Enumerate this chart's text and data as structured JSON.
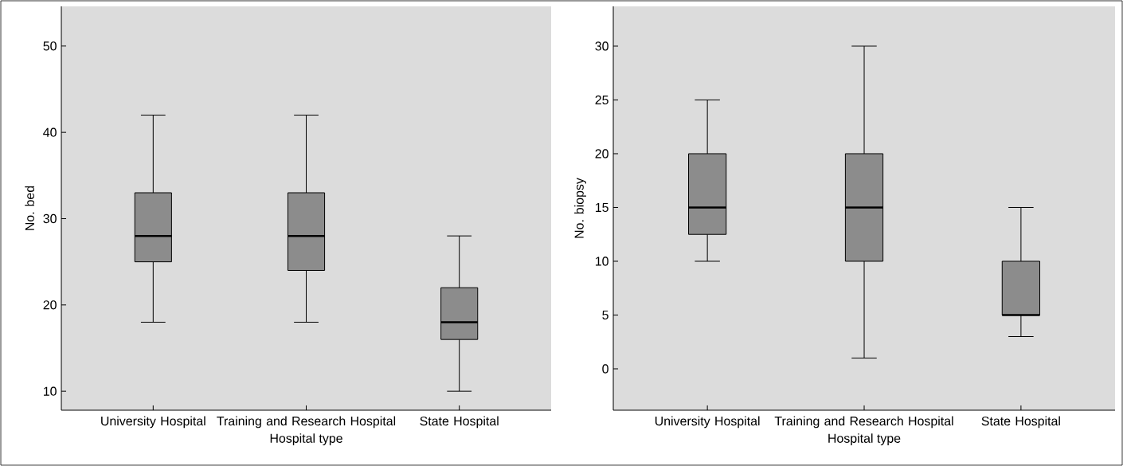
{
  "chart_data": [
    {
      "type": "box",
      "categories": [
        "University Hospital",
        "Training and Research Hospital",
        "State Hospital"
      ],
      "xlabel": "Hospital type",
      "ylabel": "No. bed",
      "color": "#8c8c8c",
      "ylim": [
        7.8,
        54.6
      ],
      "yticks": [
        10,
        20,
        30,
        40,
        50
      ],
      "boxes": [
        {
          "low": 18,
          "q1": 25,
          "median": 28,
          "q3": 33,
          "high": 42
        },
        {
          "low": 18,
          "q1": 24,
          "median": 28,
          "q3": 33,
          "high": 42
        },
        {
          "low": 10,
          "q1": 16,
          "median": 18,
          "q3": 22,
          "high": 28
        }
      ]
    },
    {
      "type": "box",
      "categories": [
        "University Hospital",
        "Training and Research Hospital",
        "State Hospital"
      ],
      "xlabel": "Hospital type",
      "ylabel": "No. biopsy",
      "color": "#8c8c8c",
      "ylim": [
        -3.85,
        33.7
      ],
      "yticks": [
        0,
        5,
        10,
        15,
        20,
        25,
        30
      ],
      "boxes": [
        {
          "low": 10,
          "q1": 12.5,
          "median": 15,
          "q3": 20,
          "high": 25
        },
        {
          "low": 1,
          "q1": 10,
          "median": 15,
          "q3": 20,
          "high": 30
        },
        {
          "low": 3,
          "q1": 5,
          "median": 5,
          "q3": 10,
          "high": 15
        }
      ]
    }
  ]
}
